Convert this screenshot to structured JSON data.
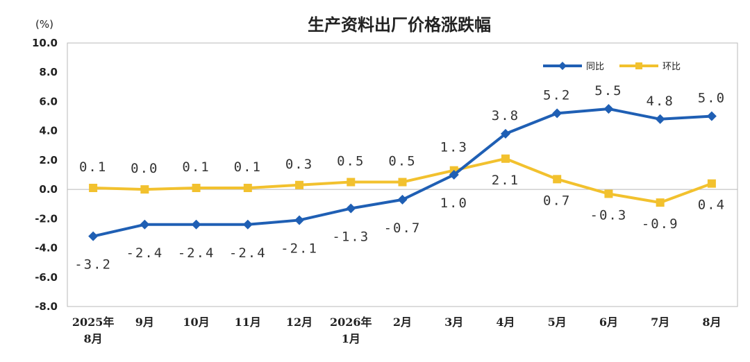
{
  "chart_data": {
    "type": "line",
    "title": "生产资料出厂价格涨跌幅",
    "unit": "(%)",
    "categories": [
      [
        "2025年",
        "8月"
      ],
      [
        "9月"
      ],
      [
        "10月"
      ],
      [
        "11月"
      ],
      [
        "12月"
      ],
      [
        "2026年",
        "1月"
      ],
      [
        "2月"
      ],
      [
        "3月"
      ],
      [
        "4月"
      ],
      [
        "5月"
      ],
      [
        "6月"
      ],
      [
        "7月"
      ],
      [
        "8月"
      ]
    ],
    "ylim": [
      -8.0,
      10.0
    ],
    "yticks": [
      "10.0",
      "8.0",
      "6.0",
      "4.0",
      "2.0",
      "0.0",
      "-2.0",
      "-4.0",
      "-6.0",
      "-8.0"
    ],
    "grid": false,
    "legend_position": "top-right",
    "series": [
      {
        "name": "同比",
        "color": "#1f5fb4",
        "marker": "diamond",
        "values": [
          -3.2,
          -2.4,
          -2.4,
          -2.4,
          -2.1,
          -1.3,
          -0.7,
          1.0,
          3.8,
          5.2,
          5.5,
          4.8,
          5.0
        ],
        "labels": [
          "-3.2",
          "-2.4",
          "-2.4",
          "-2.4",
          "-2.1",
          "-1.3",
          "-0.7",
          "1.0",
          "3.8",
          "5.2",
          "5.5",
          "4.8",
          "5.0"
        ]
      },
      {
        "name": "环比",
        "color": "#f2c12e",
        "marker": "square",
        "values": [
          0.1,
          0.0,
          0.1,
          0.1,
          0.3,
          0.5,
          0.5,
          1.3,
          2.1,
          0.7,
          -0.3,
          -0.9,
          0.4
        ],
        "labels": [
          "0.1",
          "0.0",
          "0.1",
          "0.1",
          "0.3",
          "0.5",
          "0.5",
          "1.3",
          "2.1",
          "0.7",
          "-0.3",
          "-0.9",
          "0.4"
        ]
      }
    ]
  }
}
